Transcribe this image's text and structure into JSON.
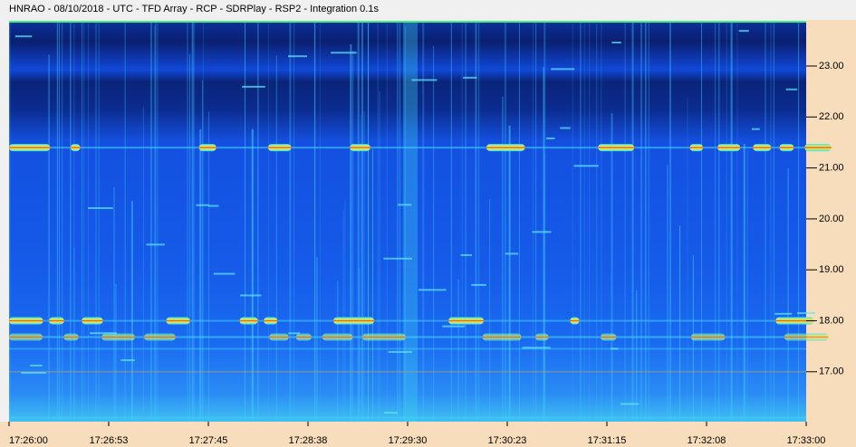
{
  "chart_data": {
    "type": "spectrogram",
    "title": "HNRAO - 08/10/2018 - UTC - TFD Array - RCP - SDRPlay - RSP2 - Integration 0.1s",
    "xticks": [
      "17:26:00",
      "17:26:53",
      "17:27:45",
      "17:28:38",
      "17:29:30",
      "17:30:23",
      "17:31:15",
      "17:32:08",
      "17:33:00"
    ],
    "ylim": [
      16.02,
      23.87
    ],
    "yticks": [
      {
        "value": 17,
        "label": "17.00"
      },
      {
        "value": 18,
        "label": "18.00"
      },
      {
        "value": 19,
        "label": "19.00"
      },
      {
        "value": 20,
        "label": "20.00"
      },
      {
        "value": 21,
        "label": "21.00"
      },
      {
        "value": 22,
        "label": "22.00"
      },
      {
        "value": 23,
        "label": "23.00"
      }
    ]
  }
}
